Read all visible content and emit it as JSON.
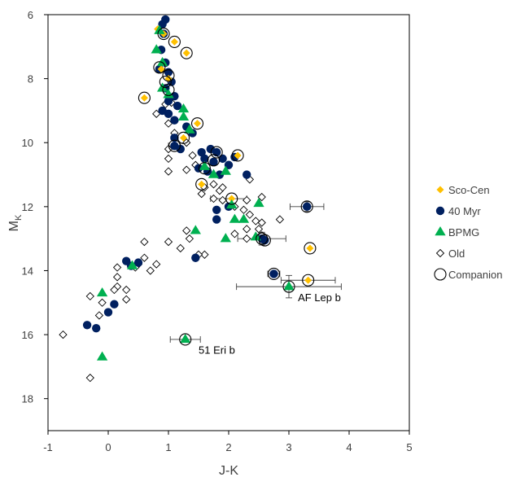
{
  "chart_data": {
    "type": "scatter",
    "xlabel": "J-K",
    "ylabel_main": "M",
    "ylabel_sub": "K",
    "xlim": [
      -1,
      5
    ],
    "ylim": [
      6,
      19
    ],
    "y_inverted": true,
    "x_ticks": [
      "-1",
      "0",
      "1",
      "2",
      "3",
      "4",
      "5"
    ],
    "y_ticks": [
      "6",
      "8",
      "10",
      "12",
      "14",
      "16",
      "18"
    ],
    "grid": false,
    "legend_position": "right",
    "series": [
      {
        "name": "Sco-Cen",
        "marker": "diamond-filled",
        "color": "#FFC000",
        "points": [
          [
            0.82,
            6.45
          ],
          [
            1.1,
            6.85
          ],
          [
            0.92,
            6.6
          ],
          [
            1.3,
            7.2
          ],
          [
            0.6,
            8.6
          ],
          [
            0.88,
            7.7
          ],
          [
            1.0,
            8.0
          ],
          [
            1.48,
            9.4
          ],
          [
            1.25,
            9.85
          ],
          [
            1.55,
            11.3
          ],
          [
            2.05,
            11.75
          ],
          [
            2.15,
            10.4
          ],
          [
            3.35,
            13.3
          ],
          [
            3.32,
            14.3
          ]
        ]
      },
      {
        "name": "40 Myr",
        "marker": "circle-filled",
        "color": "#002060",
        "points": [
          [
            0.95,
            6.15
          ],
          [
            0.9,
            6.3
          ],
          [
            0.92,
            6.6
          ],
          [
            0.88,
            7.1
          ],
          [
            0.95,
            7.5
          ],
          [
            0.85,
            7.7
          ],
          [
            1.0,
            7.8
          ],
          [
            1.05,
            8.1
          ],
          [
            0.95,
            8.3
          ],
          [
            1.0,
            8.7
          ],
          [
            1.1,
            8.55
          ],
          [
            0.9,
            9.0
          ],
          [
            1.15,
            8.85
          ],
          [
            1.0,
            9.1
          ],
          [
            1.1,
            9.3
          ],
          [
            1.3,
            9.5
          ],
          [
            1.4,
            9.7
          ],
          [
            1.1,
            9.85
          ],
          [
            1.1,
            10.1
          ],
          [
            1.2,
            10.2
          ],
          [
            1.55,
            10.3
          ],
          [
            1.7,
            10.2
          ],
          [
            1.8,
            10.3
          ],
          [
            1.6,
            10.5
          ],
          [
            1.75,
            10.6
          ],
          [
            1.9,
            10.5
          ],
          [
            2.1,
            10.45
          ],
          [
            1.5,
            10.8
          ],
          [
            1.65,
            10.9
          ],
          [
            1.85,
            11.0
          ],
          [
            2.0,
            10.7
          ],
          [
            2.3,
            11.0
          ],
          [
            1.8,
            12.1
          ],
          [
            1.8,
            12.4
          ],
          [
            2.0,
            12.0
          ],
          [
            2.55,
            13.0
          ],
          [
            2.6,
            13.05
          ],
          [
            0.3,
            13.7
          ],
          [
            0.38,
            13.85
          ],
          [
            0.5,
            13.75
          ],
          [
            1.45,
            13.6
          ],
          [
            2.75,
            14.1
          ],
          [
            0.0,
            15.3
          ],
          [
            -0.2,
            15.8
          ],
          [
            -0.35,
            15.7
          ],
          [
            0.1,
            15.05
          ],
          [
            3.3,
            12.0
          ]
        ]
      },
      {
        "name": "BPMG",
        "marker": "triangle-filled",
        "color": "#00B050",
        "points": [
          [
            0.8,
            7.1
          ],
          [
            0.9,
            7.5
          ],
          [
            0.85,
            6.5
          ],
          [
            0.9,
            8.3
          ],
          [
            1.0,
            8.5
          ],
          [
            1.25,
            8.95
          ],
          [
            1.25,
            9.2
          ],
          [
            1.35,
            9.6
          ],
          [
            1.6,
            10.75
          ],
          [
            1.75,
            11.0
          ],
          [
            1.95,
            10.9
          ],
          [
            2.05,
            11.95
          ],
          [
            2.1,
            12.4
          ],
          [
            2.25,
            12.4
          ],
          [
            2.5,
            11.9
          ],
          [
            1.45,
            12.75
          ],
          [
            1.95,
            13.0
          ],
          [
            2.45,
            12.95
          ],
          [
            0.4,
            13.85
          ],
          [
            -0.1,
            14.7
          ],
          [
            -0.1,
            16.7
          ],
          [
            3.0,
            14.5
          ],
          [
            1.28,
            16.15
          ]
        ]
      },
      {
        "name": "Old",
        "marker": "diamond-open",
        "color": "#000000",
        "points": [
          [
            0.95,
            8.8
          ],
          [
            1.05,
            8.75
          ],
          [
            0.8,
            9.1
          ],
          [
            1.0,
            9.4
          ],
          [
            1.1,
            9.7
          ],
          [
            1.3,
            10.0
          ],
          [
            1.0,
            10.2
          ],
          [
            1.0,
            10.5
          ],
          [
            1.0,
            10.9
          ],
          [
            1.4,
            10.4
          ],
          [
            1.3,
            10.85
          ],
          [
            1.6,
            11.4
          ],
          [
            1.75,
            11.3
          ],
          [
            1.85,
            11.5
          ],
          [
            1.55,
            11.6
          ],
          [
            1.75,
            11.75
          ],
          [
            1.9,
            11.8
          ],
          [
            2.1,
            12.0
          ],
          [
            2.25,
            12.1
          ],
          [
            2.3,
            11.8
          ],
          [
            2.35,
            12.25
          ],
          [
            2.45,
            12.45
          ],
          [
            2.55,
            11.7
          ],
          [
            2.55,
            12.5
          ],
          [
            2.3,
            12.7
          ],
          [
            2.5,
            12.7
          ],
          [
            2.55,
            12.9
          ],
          [
            2.85,
            12.4
          ],
          [
            2.1,
            12.85
          ],
          [
            2.3,
            13.0
          ],
          [
            1.3,
            12.75
          ],
          [
            1.35,
            13.0
          ],
          [
            1.2,
            13.3
          ],
          [
            1.0,
            13.1
          ],
          [
            0.6,
            13.1
          ],
          [
            0.6,
            13.6
          ],
          [
            0.5,
            13.8
          ],
          [
            0.7,
            14.0
          ],
          [
            0.8,
            13.8
          ],
          [
            0.45,
            13.9
          ],
          [
            0.15,
            13.9
          ],
          [
            0.15,
            14.2
          ],
          [
            0.15,
            14.5
          ],
          [
            0.1,
            14.6
          ],
          [
            0.3,
            14.6
          ],
          [
            0.3,
            14.9
          ],
          [
            -0.3,
            14.8
          ],
          [
            -0.1,
            15.0
          ],
          [
            -0.15,
            15.4
          ],
          [
            -0.75,
            16.0
          ],
          [
            -0.3,
            17.35
          ],
          [
            1.6,
            13.5
          ],
          [
            1.5,
            13.5
          ],
          [
            1.9,
            11.4
          ],
          [
            2.35,
            11.15
          ],
          [
            1.45,
            10.7
          ]
        ]
      },
      {
        "name": "Companion",
        "marker": "circle-open",
        "color": "#000000",
        "points": [
          [
            0.92,
            6.6
          ],
          [
            1.1,
            6.85
          ],
          [
            1.3,
            7.2
          ],
          [
            0.85,
            7.65
          ],
          [
            1.0,
            7.9
          ],
          [
            0.95,
            8.1
          ],
          [
            1.0,
            8.35
          ],
          [
            0.6,
            8.6
          ],
          [
            1.48,
            9.4
          ],
          [
            1.25,
            9.85
          ],
          [
            1.1,
            10.1
          ],
          [
            1.8,
            10.3
          ],
          [
            1.75,
            10.55
          ],
          [
            1.6,
            10.8
          ],
          [
            2.15,
            10.4
          ],
          [
            1.55,
            11.3
          ],
          [
            2.05,
            11.75
          ],
          [
            2.55,
            13.0
          ],
          [
            2.6,
            13.05
          ],
          [
            3.3,
            12.0
          ],
          [
            3.35,
            13.3
          ],
          [
            2.75,
            14.1
          ],
          [
            3.32,
            14.3
          ],
          [
            3.0,
            14.5
          ],
          [
            1.28,
            16.15
          ]
        ]
      }
    ],
    "error_bars": [
      {
        "x": 3.3,
        "y": 12.0,
        "xerr": 0.28,
        "yerr": 0.15
      },
      {
        "x": 2.55,
        "y": 13.0,
        "xerr": 0.4,
        "yerr": 0.2
      },
      {
        "x": 2.75,
        "y": 14.1,
        "xerr": 0.1,
        "yerr": 0.05
      },
      {
        "x": 3.32,
        "y": 14.3,
        "xerr": 0.45,
        "yerr": 0.0
      },
      {
        "x": 3.0,
        "y": 14.5,
        "xerr": 0.87,
        "yerr": 0.35
      },
      {
        "x": 1.28,
        "y": 16.15,
        "xerr": 0.25,
        "yerr": 0.0
      },
      {
        "x": 1.1,
        "y": 10.1,
        "xerr": 0.1,
        "yerr": 0.0
      },
      {
        "x": 2.0,
        "y": 11.75,
        "xerr": 0.3,
        "yerr": 0.0
      }
    ],
    "annotations": [
      {
        "text": "AF Lep b",
        "x": 3.15,
        "y": 14.85
      },
      {
        "text": "51 Eri b",
        "x": 1.5,
        "y": 16.5
      }
    ]
  }
}
